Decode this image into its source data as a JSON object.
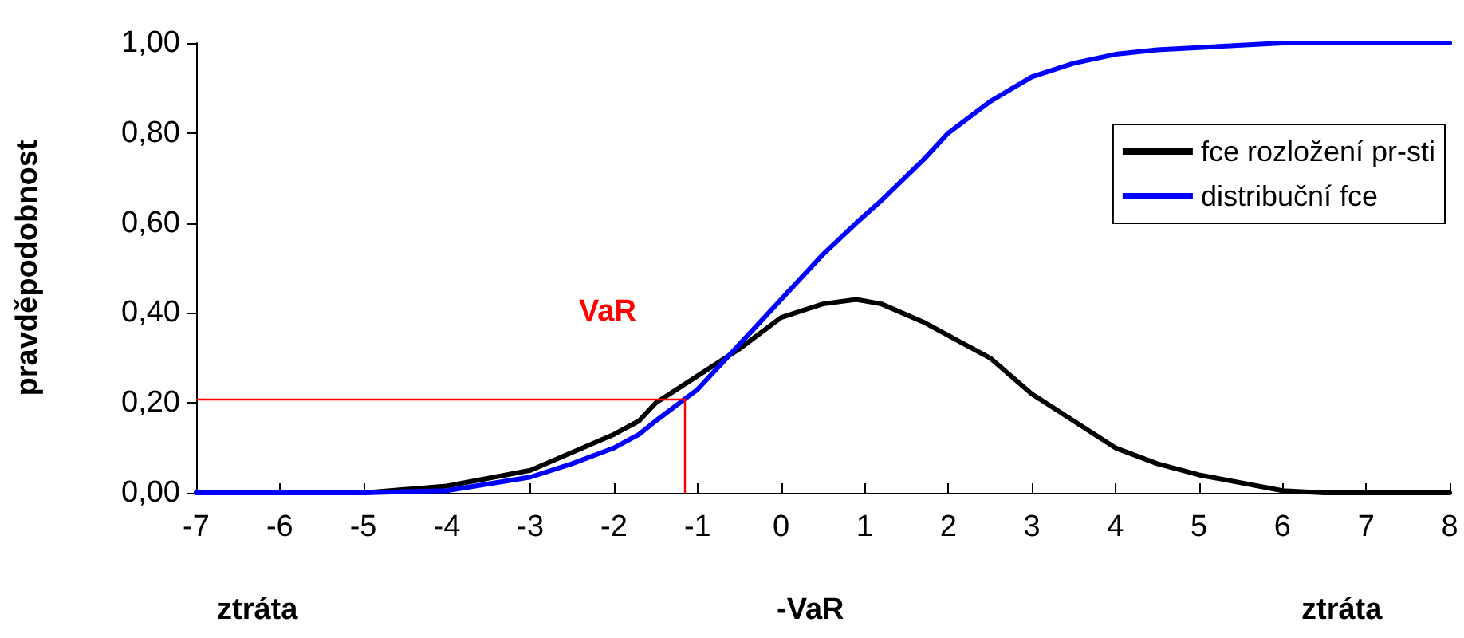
{
  "chart_data": {
    "type": "line",
    "ylabel": "pravděpodobnost",
    "x": [
      -7,
      -6,
      -5,
      -4,
      -3,
      -2.5,
      -2,
      -1.7,
      -1.5,
      -1,
      -0.5,
      0,
      0.5,
      0.9,
      1.2,
      1.7,
      2,
      2.5,
      3,
      3.5,
      4,
      4.5,
      5,
      6,
      6.5,
      7,
      8
    ],
    "series": [
      {
        "name": "fce rozložení pr-sti",
        "color": "#000000",
        "values": [
          0,
          0,
          0,
          0.015,
          0.05,
          0.09,
          0.13,
          0.16,
          0.2,
          0.26,
          0.32,
          0.39,
          0.42,
          0.43,
          0.42,
          0.38,
          0.35,
          0.3,
          0.22,
          0.16,
          0.1,
          0.065,
          0.04,
          0.005,
          0,
          0,
          0
        ]
      },
      {
        "name": "distribuční fce",
        "color": "#0000ff",
        "values": [
          0,
          0,
          0,
          0.005,
          0.035,
          0.065,
          0.1,
          0.13,
          0.16,
          0.23,
          0.33,
          0.43,
          0.53,
          0.6,
          0.65,
          0.74,
          0.8,
          0.87,
          0.925,
          0.955,
          0.975,
          0.985,
          0.99,
          1,
          1,
          1,
          1
        ]
      }
    ],
    "ref_lines": [
      {
        "axis": "y",
        "value": 0.21,
        "color": "#ff0000"
      },
      {
        "axis": "x",
        "value": -1.15,
        "color": "#ff0000"
      }
    ],
    "xlim": [
      -7,
      8
    ],
    "xticks": [
      -7,
      -6,
      -5,
      -4,
      -3,
      -2,
      -1,
      0,
      1,
      2,
      3,
      4,
      5,
      6,
      7,
      8
    ],
    "ylim": [
      0,
      1
    ],
    "yticks": [
      {
        "value": 0,
        "label": "0,00"
      },
      {
        "value": 0.2,
        "label": "0,20"
      },
      {
        "value": 0.4,
        "label": "0,40"
      },
      {
        "value": 0.6,
        "label": "0,60"
      },
      {
        "value": 0.8,
        "label": "0,80"
      },
      {
        "value": 1,
        "label": "1,00"
      }
    ],
    "annotations": [
      "VaR",
      "ztráta",
      "-VaR",
      "ztráta"
    ],
    "legend": "top right",
    "grid": false,
    "marker": "none",
    "line_style": "solid"
  }
}
